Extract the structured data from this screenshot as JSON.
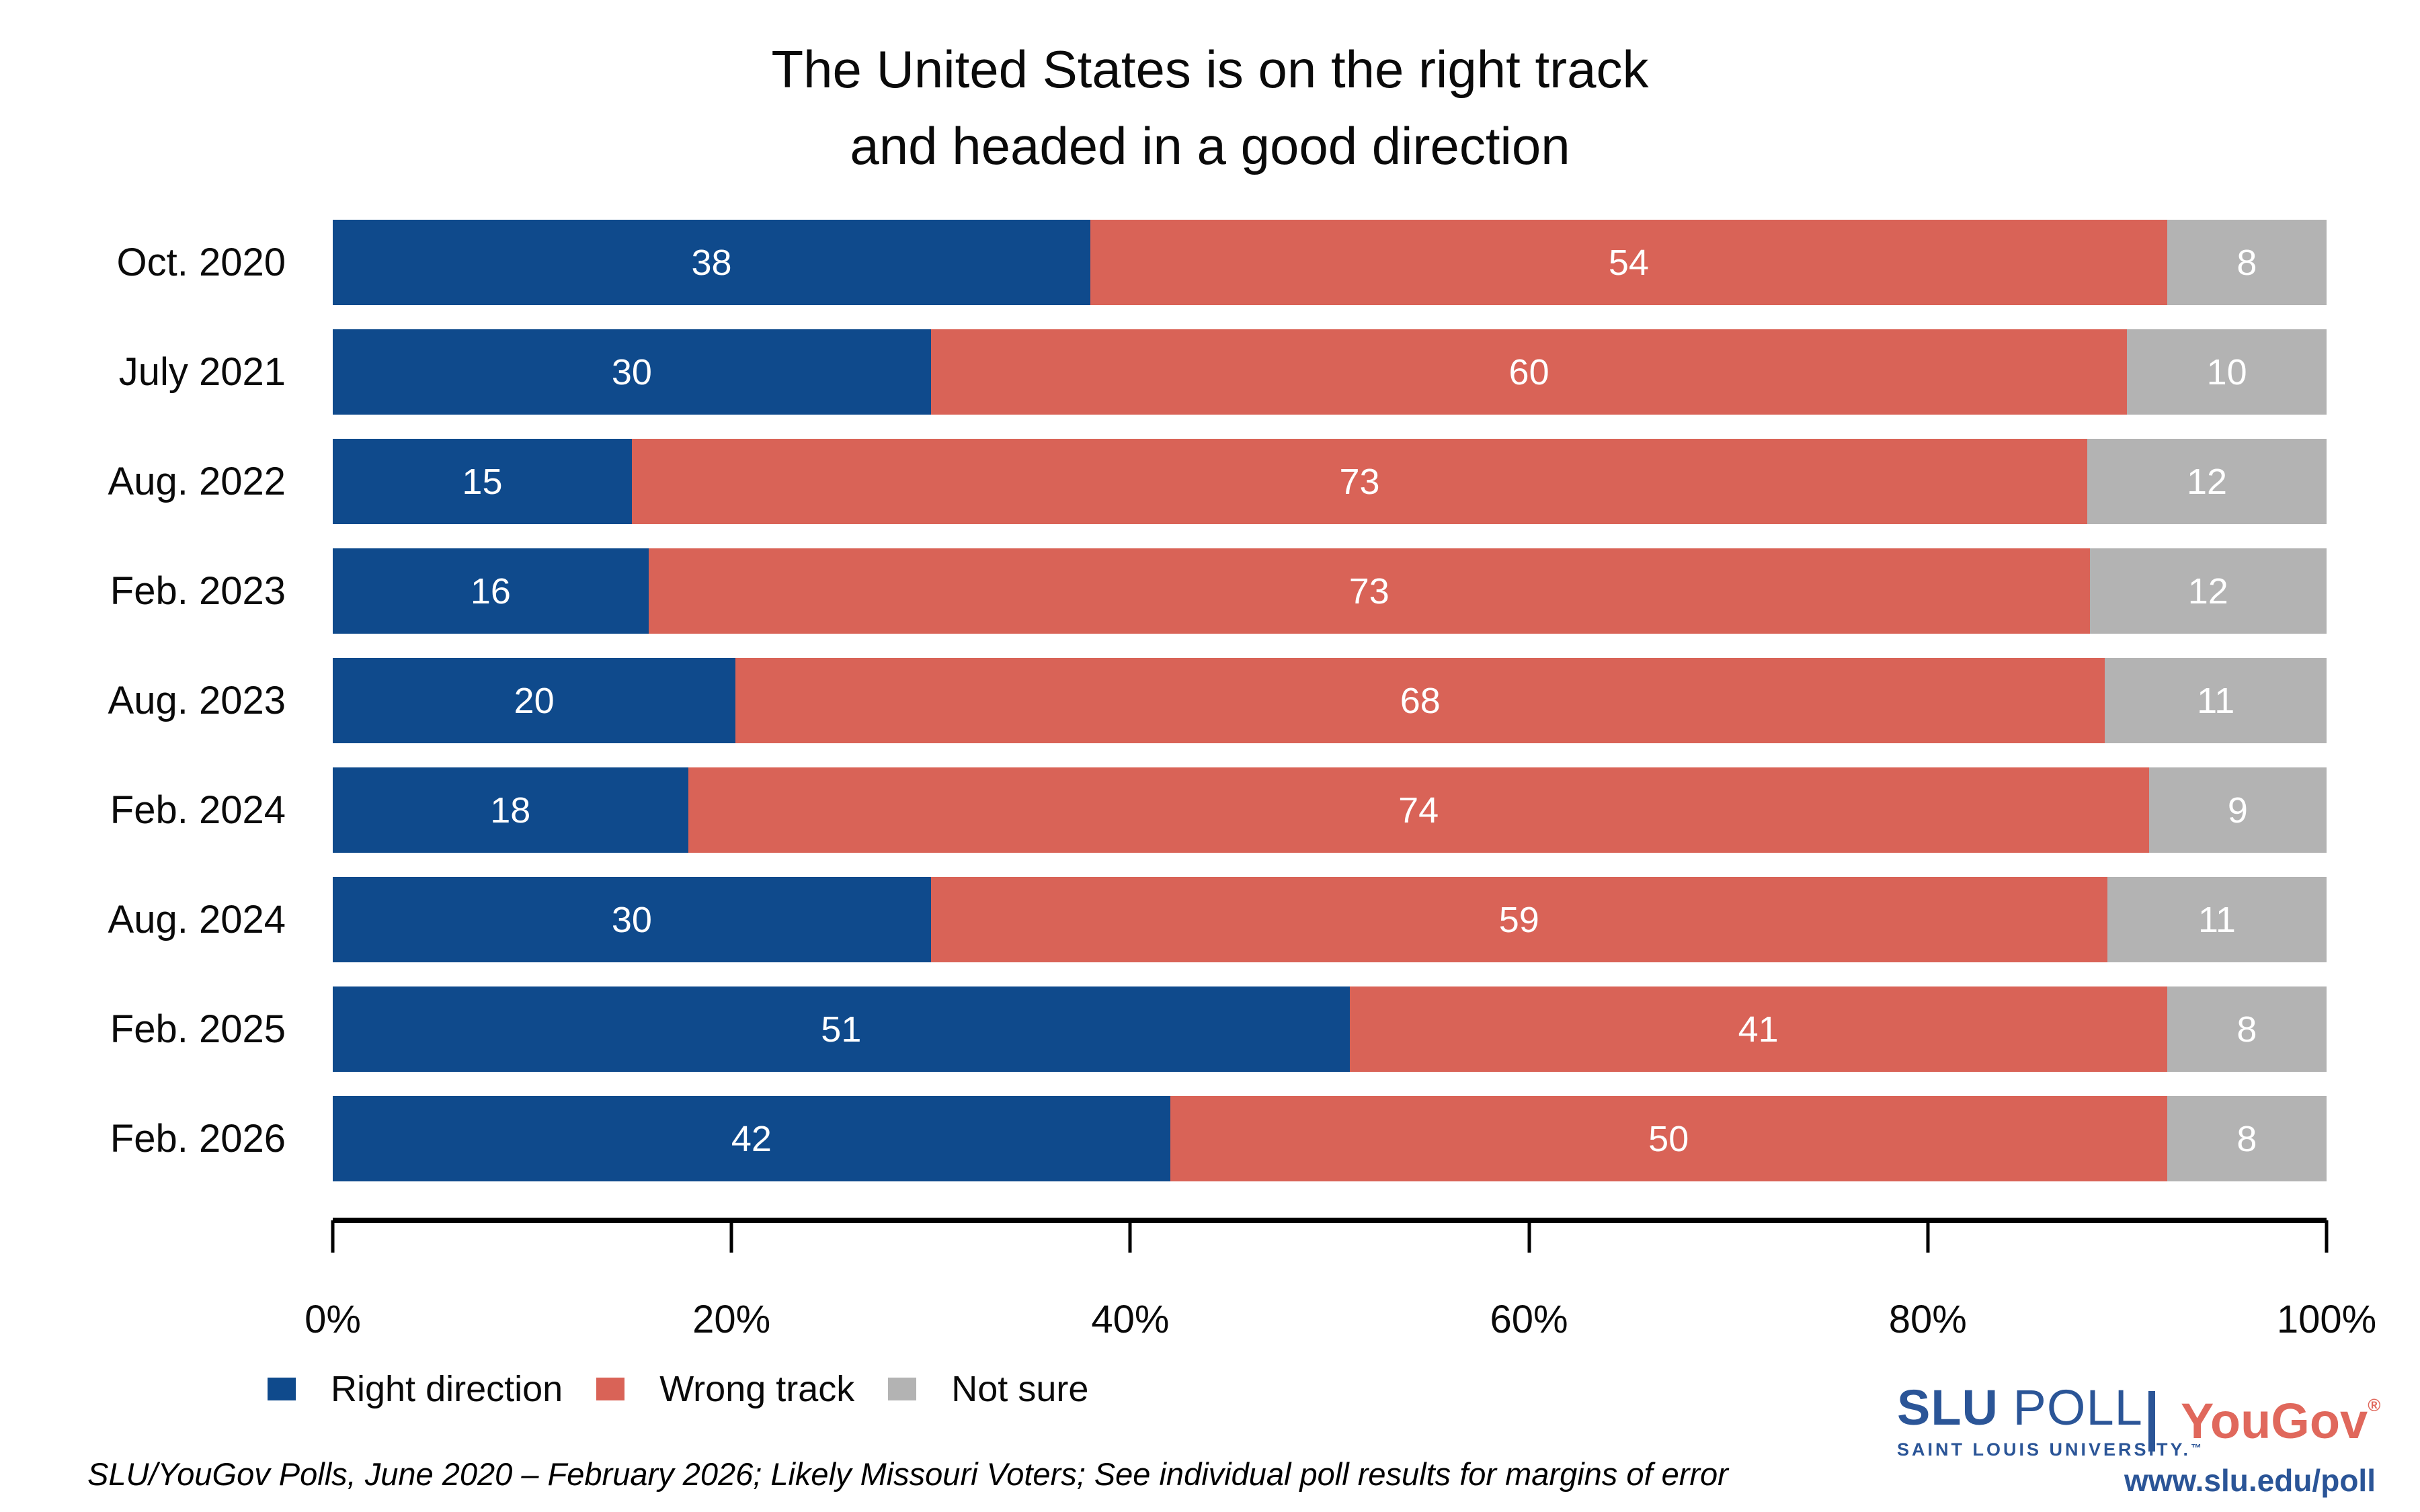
{
  "title": {
    "line1": "The United States is on the right track",
    "line2": "and headed in a good direction"
  },
  "chart_data": {
    "type": "bar",
    "orientation": "horizontal",
    "stacked": true,
    "title": "The United States is on the right track and headed in a good direction",
    "categories": [
      "Oct. 2020",
      "July 2021",
      "Aug. 2022",
      "Feb. 2023",
      "Aug. 2023",
      "Feb. 2024",
      "Aug. 2024",
      "Feb. 2025",
      "Feb. 2026"
    ],
    "series": [
      {
        "name": "Right direction",
        "color": "#0F4A8C",
        "values": [
          38,
          30,
          15,
          16,
          20,
          18,
          30,
          51,
          42
        ]
      },
      {
        "name": "Wrong track",
        "color": "#D96357",
        "values": [
          54,
          60,
          73,
          73,
          68,
          74,
          59,
          41,
          50
        ]
      },
      {
        "name": "Not sure",
        "color": "#B3B3B3",
        "values": [
          8,
          10,
          12,
          12,
          11,
          9,
          11,
          8,
          8
        ]
      }
    ],
    "xlim": [
      0,
      100
    ],
    "x_ticks": [
      "0%",
      "20%",
      "40%",
      "60%",
      "80%",
      "100%"
    ],
    "grid": false,
    "legend_position": "bottom-left",
    "value_label_style": "white numbers centered inside each segment",
    "bars_normalized_to_100": true
  },
  "legend": {
    "items": [
      {
        "label": "Right direction",
        "color": "#0F4A8C"
      },
      {
        "label": "Wrong track",
        "color": "#D96357"
      },
      {
        "label": "Not sure",
        "color": "#B3B3B3"
      }
    ]
  },
  "footer": {
    "source_note": "SLU/YouGov Polls, June 2020 – February 2026; Likely Missouri Voters; See individual poll results for margins of error"
  },
  "branding": {
    "slu_poll_bold": "SLU",
    "slu_poll_rest": " POLL",
    "slu_subtitle": "SAINT LOUIS UNIVERSITY.",
    "slu_trademark": "™",
    "partner_name": "YouGov",
    "partner_registered": "®",
    "website": "www.slu.edu/poll",
    "slu_blue": "#2B5597",
    "yougov_red": "#E0685C"
  }
}
